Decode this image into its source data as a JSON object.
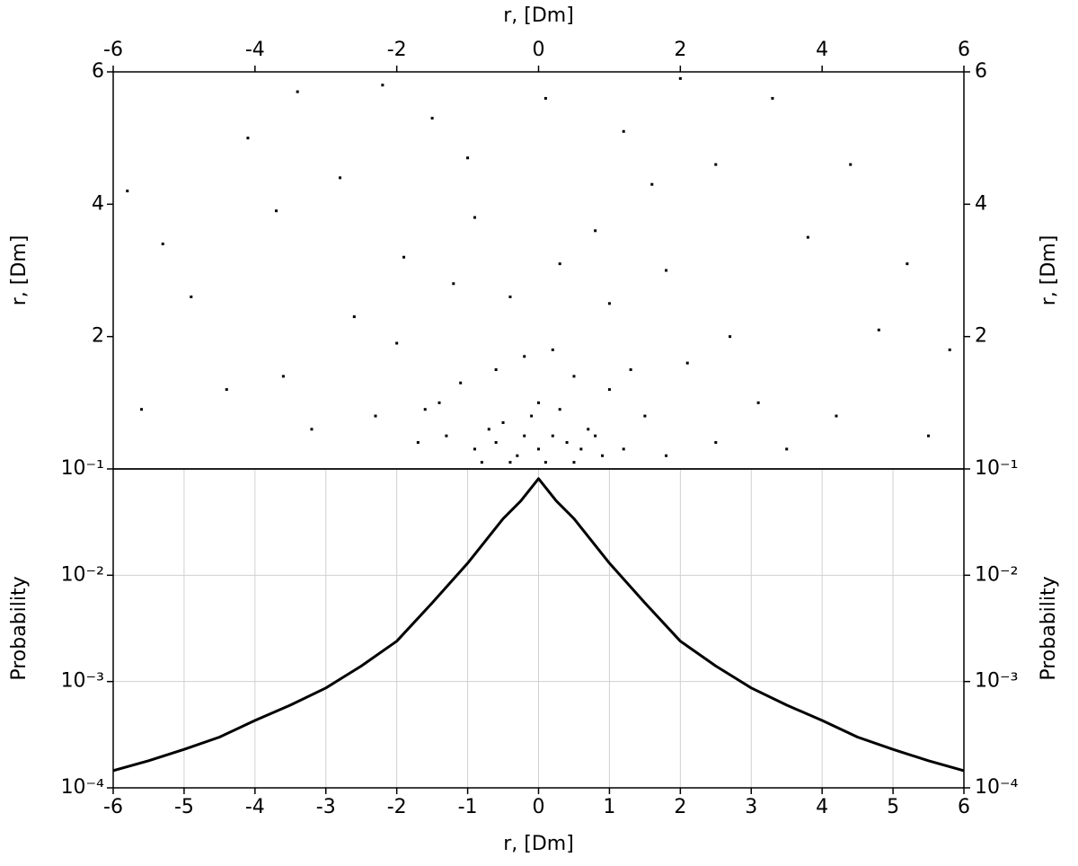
{
  "chart_data": [
    {
      "type": "scatter",
      "xlabel": "r, [Dm]",
      "ylabel": "r, [Dm]",
      "x_axis": "top",
      "mirror_y": true,
      "color": "#000000",
      "xlim": [
        -6,
        6
      ],
      "xticks": [
        -6,
        -4,
        -2,
        0,
        2,
        4,
        6
      ],
      "ylim": [
        0,
        6
      ],
      "yticks": [
        2,
        4,
        6
      ],
      "x": [
        0,
        0.2,
        -0.3,
        0.5,
        -0.6,
        0.7,
        -0.1,
        0.3,
        -0.8,
        0.9,
        -0.5,
        0.1,
        0.4,
        -0.2,
        0.6,
        -0.7,
        0,
        -0.4,
        0.8,
        -0.9,
        1.2,
        -1.3,
        0.5,
        -0.6,
        1.5,
        -1.4,
        1.0,
        -1.1,
        0.2,
        -0.2,
        1.8,
        -1.7,
        1.3,
        -1.6,
        2.5,
        -2.3,
        2.1,
        -2.0,
        1.0,
        -1.2,
        0.3,
        -0.4,
        3.1,
        -3.2,
        2.7,
        -2.6,
        1.8,
        -1.9,
        3.5,
        -3.6,
        0.8,
        -0.9,
        4.2,
        -4.4,
        4.8,
        -4.9,
        3.8,
        -3.7,
        2.5,
        -2.8,
        1.2,
        -1.5,
        0.1,
        5.5,
        -5.6,
        5.2,
        -5.3,
        4.4,
        -4.1,
        3.3,
        -3.4,
        5.8,
        -5.8,
        2.0,
        -1.0,
        1.6,
        -2.2
      ],
      "y": [
        0.3,
        0.5,
        0.2,
        0.1,
        0.4,
        0.6,
        0.8,
        0.9,
        0.1,
        0.2,
        0.7,
        0.1,
        0.4,
        0.5,
        0.3,
        0.6,
        1.0,
        0.1,
        0.5,
        0.3,
        0.3,
        0.5,
        1.4,
        1.5,
        0.8,
        1.0,
        1.2,
        1.3,
        1.8,
        1.7,
        0.2,
        0.4,
        1.5,
        0.9,
        0.4,
        0.8,
        1.6,
        1.9,
        2.5,
        2.8,
        3.1,
        2.6,
        1.0,
        0.6,
        2.0,
        2.3,
        3.0,
        3.2,
        0.3,
        1.4,
        3.6,
        3.8,
        0.8,
        1.2,
        2.1,
        2.6,
        3.5,
        3.9,
        4.6,
        4.4,
        5.1,
        5.3,
        5.6,
        0.5,
        0.9,
        3.1,
        3.4,
        4.6,
        5.0,
        5.6,
        5.7,
        1.8,
        4.2,
        5.9,
        4.7,
        4.3,
        5.8
      ]
    },
    {
      "type": "line",
      "xlabel": "r, [Dm]",
      "ylabel": "Probability",
      "log_y": true,
      "grid": true,
      "mirror_y": true,
      "color": "#000000",
      "x": [
        -6,
        -5.5,
        -5,
        -4.5,
        -4,
        -3.5,
        -3,
        -2.5,
        -2,
        -1.5,
        -1,
        -0.5,
        -0.25,
        0,
        0.25,
        0.5,
        1,
        1.5,
        2,
        2.5,
        3,
        3.5,
        4,
        4.5,
        5,
        5.5,
        6
      ],
      "values": [
        0.000145,
        0.00018,
        0.00023,
        0.0003,
        0.00043,
        0.0006,
        0.00087,
        0.0014,
        0.0024,
        0.0055,
        0.013,
        0.034,
        0.05,
        0.081,
        0.05,
        0.034,
        0.013,
        0.0055,
        0.0024,
        0.0014,
        0.00087,
        0.0006,
        0.00043,
        0.0003,
        0.00023,
        0.00018,
        0.000145
      ],
      "xlim": [
        -6,
        6
      ],
      "xticks": [
        -6,
        -5,
        -4,
        -3,
        -2,
        -1,
        0,
        1,
        2,
        3,
        4,
        5,
        6
      ],
      "ylim": [
        0.0001,
        0.1
      ],
      "yticks": [
        {
          "value": 0.0001,
          "label": "10⁻⁴"
        },
        {
          "value": 0.001,
          "label": "10⁻³"
        },
        {
          "value": 0.01,
          "label": "10⁻²"
        },
        {
          "value": 0.1,
          "label": "10⁻¹"
        }
      ]
    }
  ]
}
